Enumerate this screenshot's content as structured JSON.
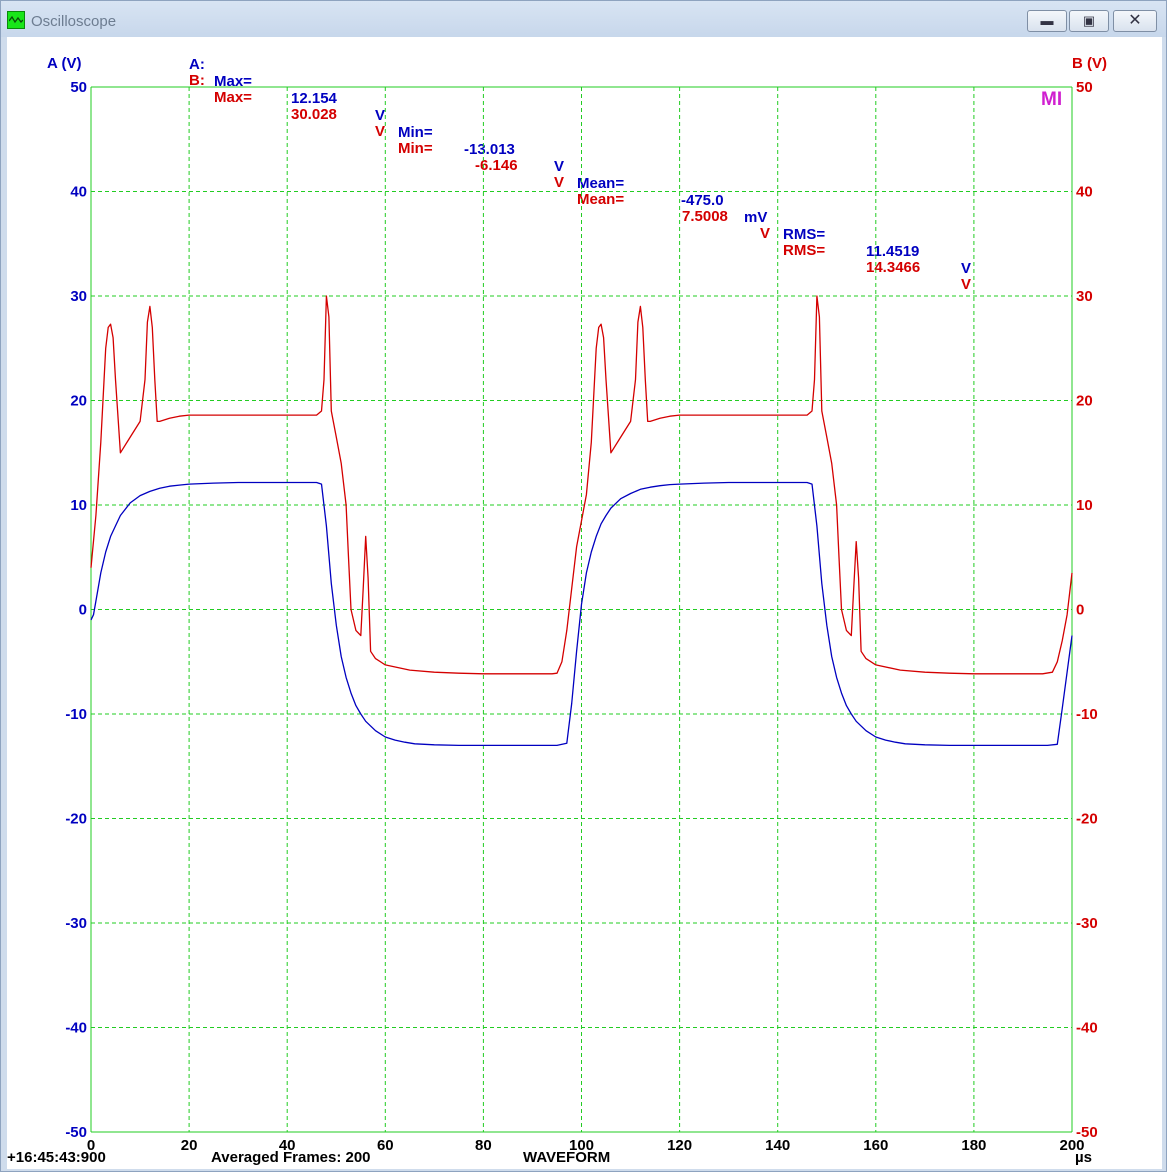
{
  "window": {
    "title": "Oscilloscope",
    "minimize_icon": "minimize-icon",
    "maximize_icon": "maximize-icon",
    "close_icon": "close-icon"
  },
  "stats": {
    "a": {
      "label": "A:",
      "max_label": "Max=",
      "max": "12.154",
      "max_unit": "V",
      "min_label": "Min=",
      "min": "-13.013",
      "min_unit": "V",
      "mean_label": "Mean=",
      "mean": "-475.0",
      "mean_unit": "mV",
      "rms_label": "RMS=",
      "rms": "11.4519",
      "rms_unit": "V"
    },
    "b": {
      "label": "B:",
      "max_label": "Max=",
      "max": "30.028",
      "max_unit": "V",
      "min_label": "Min=",
      "min": "-6.146",
      "min_unit": "V",
      "mean_label": "Mean=",
      "mean": "7.5008",
      "mean_unit": "V",
      "rms_label": "RMS=",
      "rms": "14.3466",
      "rms_unit": "V"
    }
  },
  "indicator": "MI",
  "footer": {
    "timestamp": "+16:45:43:900",
    "averaged_frames": "Averaged Frames: 200",
    "mode": "WAVEFORM"
  },
  "colors": {
    "channel_a": "#0000c0",
    "channel_b": "#d40000",
    "grid": "#22cc22"
  },
  "chart_data": {
    "type": "line",
    "xlabel": "µs",
    "ylabel_left": "A (V)",
    "ylabel_right": "B (V)",
    "xlim": [
      0,
      200
    ],
    "ylim": [
      -50,
      50
    ],
    "x_ticks": [
      0,
      20,
      40,
      60,
      80,
      100,
      120,
      140,
      160,
      180,
      200
    ],
    "y_ticks": [
      -50,
      -40,
      -30,
      -20,
      -10,
      0,
      10,
      20,
      30,
      40,
      50
    ],
    "grid": true,
    "series": [
      {
        "name": "A",
        "axis": "left",
        "color": "#0000c0",
        "x": [
          0,
          0.5,
          1,
          2,
          3,
          4,
          5,
          6,
          8,
          10,
          12,
          14,
          16,
          18,
          20,
          25,
          30,
          35,
          40,
          44,
          46,
          47,
          48,
          49,
          50,
          51,
          52,
          53,
          54,
          55,
          56,
          58,
          60,
          62,
          64,
          66,
          70,
          75,
          80,
          85,
          90,
          95,
          97,
          98,
          99,
          100,
          101,
          102,
          103,
          104,
          105,
          106,
          108,
          110,
          112,
          114,
          116,
          118,
          120,
          125,
          130,
          135,
          140,
          144,
          146,
          147,
          148,
          149,
          150,
          151,
          152,
          153,
          154,
          155,
          156,
          158,
          160,
          162,
          164,
          166,
          170,
          175,
          180,
          185,
          190,
          195,
          197,
          198,
          199,
          200
        ],
        "y": [
          -1.0,
          -0.5,
          0.8,
          3.5,
          5.5,
          7.0,
          8.0,
          9.0,
          10.2,
          10.9,
          11.3,
          11.6,
          11.8,
          11.9,
          12.0,
          12.1,
          12.15,
          12.15,
          12.15,
          12.15,
          12.15,
          12.0,
          8.0,
          2.5,
          -1.5,
          -4.5,
          -6.5,
          -8.0,
          -9.2,
          -10.0,
          -10.7,
          -11.6,
          -12.2,
          -12.5,
          -12.7,
          -12.85,
          -12.95,
          -13.0,
          -13.0,
          -13.0,
          -13.0,
          -13.0,
          -12.8,
          -9.0,
          -4.0,
          0.5,
          3.5,
          5.5,
          7.0,
          8.2,
          9.0,
          9.7,
          10.6,
          11.1,
          11.5,
          11.7,
          11.85,
          11.95,
          12.0,
          12.1,
          12.15,
          12.15,
          12.15,
          12.15,
          12.15,
          12.0,
          8.0,
          2.5,
          -1.5,
          -4.5,
          -6.5,
          -8.0,
          -9.2,
          -10.0,
          -10.7,
          -11.6,
          -12.2,
          -12.5,
          -12.7,
          -12.85,
          -12.95,
          -13.0,
          -13.0,
          -13.0,
          -13.0,
          -13.0,
          -12.9,
          -9.5,
          -6.0,
          -2.5
        ]
      },
      {
        "name": "B",
        "axis": "right",
        "color": "#d40000",
        "x": [
          0,
          1,
          2,
          3,
          3.5,
          4,
          4.5,
          5,
          6,
          8,
          10,
          11,
          11.5,
          12,
          12.5,
          13,
          13.5,
          14,
          16,
          18,
          20,
          30,
          40,
          46,
          47,
          47.5,
          48,
          48.5,
          49,
          50,
          51,
          52,
          52.5,
          53,
          54,
          55,
          55.5,
          56,
          56.5,
          57,
          58,
          60,
          65,
          70,
          75,
          80,
          85,
          90,
          94,
          95,
          96,
          97,
          98,
          99,
          100,
          101,
          102,
          103,
          103.5,
          104,
          104.5,
          105,
          106,
          108,
          110,
          111,
          111.5,
          112,
          112.5,
          113,
          113.5,
          114,
          116,
          118,
          120,
          130,
          140,
          146,
          147,
          147.5,
          148,
          148.5,
          149,
          150,
          151,
          152,
          152.5,
          153,
          154,
          155,
          155.5,
          156,
          156.5,
          157,
          158,
          160,
          165,
          170,
          175,
          180,
          185,
          190,
          194,
          196,
          197,
          198,
          199,
          200
        ],
        "y": [
          4.0,
          9.0,
          16.0,
          25.0,
          27.0,
          27.3,
          26.0,
          22.0,
          15.0,
          16.5,
          18.0,
          22.0,
          27.5,
          29.0,
          27.0,
          22.0,
          18.0,
          18.0,
          18.3,
          18.5,
          18.6,
          18.6,
          18.6,
          18.6,
          19.0,
          22.0,
          30.0,
          28.0,
          19.0,
          16.5,
          14.0,
          10.0,
          5.0,
          0.0,
          -2.0,
          -2.5,
          2.0,
          7.0,
          3.0,
          -4.0,
          -4.7,
          -5.3,
          -5.8,
          -6.0,
          -6.1,
          -6.15,
          -6.15,
          -6.15,
          -6.15,
          -6.1,
          -5.0,
          -2.0,
          2.0,
          6.0,
          8.5,
          11.0,
          16.0,
          25.0,
          27.0,
          27.3,
          26.0,
          22.0,
          15.0,
          16.5,
          18.0,
          22.0,
          27.5,
          29.0,
          27.0,
          22.0,
          18.0,
          18.0,
          18.3,
          18.5,
          18.6,
          18.6,
          18.6,
          18.6,
          19.0,
          22.0,
          30.0,
          28.0,
          19.0,
          16.5,
          14.0,
          10.0,
          5.0,
          0.0,
          -2.0,
          -2.5,
          2.0,
          6.5,
          3.0,
          -4.0,
          -4.7,
          -5.3,
          -5.8,
          -6.0,
          -6.1,
          -6.15,
          -6.15,
          -6.15,
          -6.15,
          -6.0,
          -5.0,
          -3.0,
          -0.5,
          3.5
        ]
      }
    ]
  }
}
